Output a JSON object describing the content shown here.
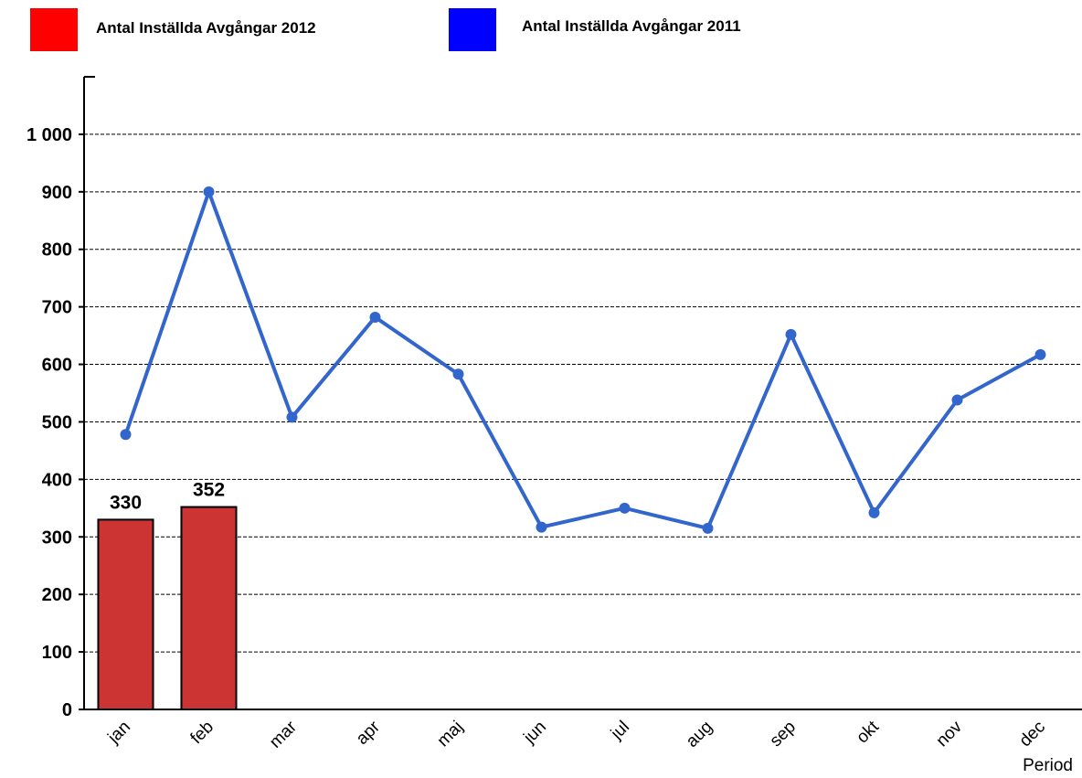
{
  "legend": {
    "items": [
      {
        "label": "Antal Inställda Avgångar 2012",
        "color": "#ff0000"
      },
      {
        "label": "Antal Inställda Avgångar 2011",
        "color": "#0000ff"
      }
    ]
  },
  "chart_data": {
    "type": "bar",
    "categories": [
      "jan",
      "feb",
      "mar",
      "apr",
      "maj",
      "jun",
      "jul",
      "aug",
      "sep",
      "okt",
      "nov",
      "dec"
    ],
    "series": [
      {
        "name": "Antal Inställda Avgångar 2012",
        "type": "bar",
        "color": "#cc3333",
        "values": [
          330,
          352,
          null,
          null,
          null,
          null,
          null,
          null,
          null,
          null,
          null,
          null
        ],
        "data_labels": [
          "330",
          "352"
        ]
      },
      {
        "name": "Antal Inställda Avgångar 2011",
        "type": "line",
        "color": "#3366cc",
        "values": [
          478,
          900,
          508,
          682,
          583,
          317,
          350,
          315,
          652,
          342,
          538,
          617
        ]
      }
    ],
    "xlabel": "Period",
    "ylabel": "",
    "ylim": [
      0,
      1100
    ],
    "yticks": [
      0,
      100,
      200,
      300,
      400,
      500,
      600,
      700,
      800,
      900,
      1000
    ],
    "ytick_labels": [
      "0",
      "100",
      "200",
      "300",
      "400",
      "500",
      "600",
      "700",
      "800",
      "900",
      "1 000"
    ],
    "grid": true,
    "legend_position": "top-left"
  }
}
